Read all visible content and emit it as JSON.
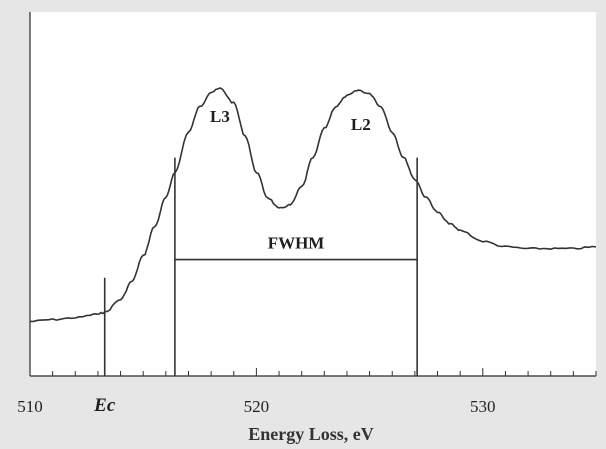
{
  "chart_data": {
    "type": "line",
    "title": "",
    "xlabel": "Energy Loss, eV",
    "ylabel": "",
    "xlim": [
      510,
      535
    ],
    "ylim": [
      0,
      1
    ],
    "x_ticks": [
      "510",
      "520",
      "530"
    ],
    "x_tick_values": [
      510,
      520,
      530
    ],
    "minor_tick_step": 1,
    "grid": false,
    "legend": "none",
    "series": [
      {
        "x": [
          510,
          511,
          512,
          513,
          513.3,
          514,
          514.5,
          515,
          515.5,
          516,
          516.4,
          517,
          517.5,
          518,
          518.4,
          519,
          519.5,
          520,
          520.5,
          521,
          521.5,
          522,
          522.5,
          523,
          523.5,
          524,
          524.5,
          525,
          525.5,
          526,
          526.5,
          527,
          527.5,
          528,
          528.5,
          529,
          530,
          531,
          532,
          533,
          534,
          535
        ],
        "y": [
          0.15,
          0.155,
          0.16,
          0.17,
          0.175,
          0.21,
          0.26,
          0.33,
          0.41,
          0.49,
          0.56,
          0.67,
          0.74,
          0.78,
          0.79,
          0.75,
          0.66,
          0.56,
          0.49,
          0.46,
          0.47,
          0.52,
          0.6,
          0.68,
          0.74,
          0.77,
          0.785,
          0.775,
          0.74,
          0.67,
          0.6,
          0.54,
          0.49,
          0.45,
          0.42,
          0.4,
          0.37,
          0.355,
          0.35,
          0.35,
          0.35,
          0.355
        ]
      }
    ],
    "annotations": {
      "peak_1": {
        "text": "L3",
        "x": 518.3
      },
      "peak_2": {
        "text": "L2",
        "x": 524.7
      },
      "onset": {
        "text": "Ec",
        "x": 513.3
      },
      "fwhm": {
        "text": "FWHM",
        "x_start": 516.4,
        "x_end": 527.1,
        "y": 0.32
      },
      "fwhm_left_marker_top": 0.6,
      "fwhm_right_marker_top": 0.6,
      "onset_marker_top": 0.27
    }
  }
}
